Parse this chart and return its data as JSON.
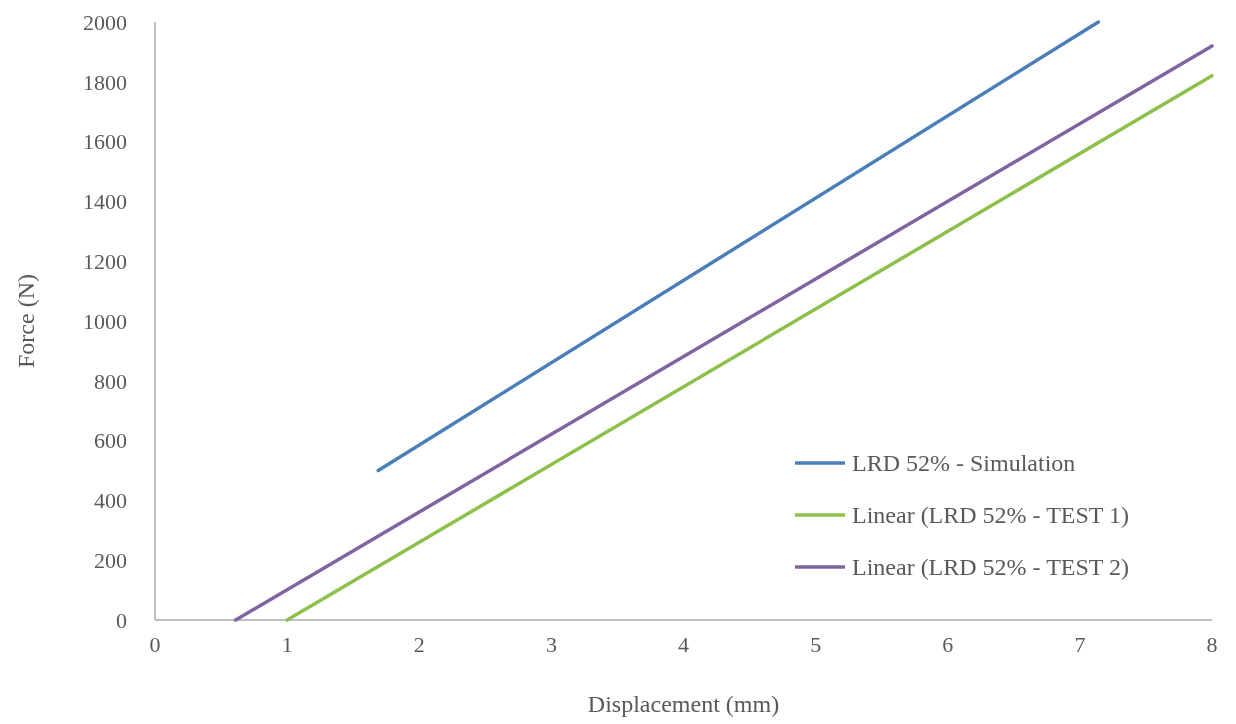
{
  "chart_data": {
    "type": "line",
    "xlabel": "Displacement (mm)",
    "ylabel": "Force (N)",
    "xlim": [
      0,
      8
    ],
    "xticks": [
      0,
      1,
      2,
      3,
      4,
      5,
      6,
      7,
      8
    ],
    "ylim": [
      0,
      2000
    ],
    "yticks": [
      0,
      200,
      400,
      600,
      800,
      1000,
      1200,
      1400,
      1600,
      1800,
      2000
    ],
    "grid": false,
    "legend": "bottom right",
    "marker": "none",
    "line_style": "solid",
    "series": [
      {
        "name": "LRD 52% - Simulation",
        "color": "#4a7ebb",
        "x": [
          1.69,
          7.14
        ],
        "values": [
          500,
          2000
        ]
      },
      {
        "name": "Linear (LRD 52% - TEST 1)",
        "color": "#8cc04a",
        "x": [
          1.0,
          8
        ],
        "values": [
          0,
          1820
        ]
      },
      {
        "name": "Linear (LRD 52% - TEST 2)",
        "color": "#8064a2",
        "x": [
          0.61,
          8
        ],
        "values": [
          0,
          1920
        ]
      }
    ]
  }
}
